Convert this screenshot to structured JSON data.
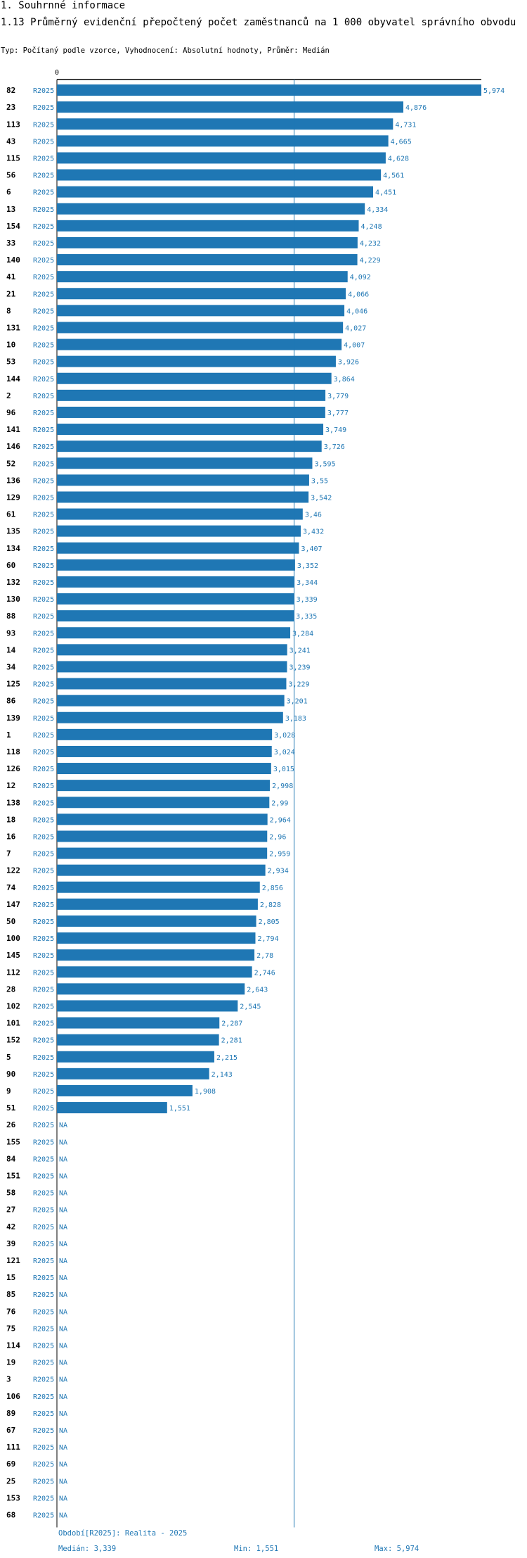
{
  "header": {
    "section": "1. Souhrnné informace",
    "title": "1.13 Průměrný evidenční přepočtený počet zaměstnanců na 1 000 obyvatel správního obvodu",
    "subtitle": "Typ: Počítaný podle vzorce, Vyhodnocení: Absolutní hodnoty, Průměr: Medián"
  },
  "colors": {
    "bar": "#1f77b4",
    "text": "#000000",
    "accent": "#1f77b4"
  },
  "chart_data": {
    "type": "bar",
    "orientation": "horizontal",
    "x_tick_labels": [
      "0"
    ],
    "xlim": [
      0,
      5.974
    ],
    "period_label": "R2025",
    "median": 3.339,
    "categories": [
      "82",
      "23",
      "113",
      "43",
      "115",
      "56",
      "6",
      "13",
      "154",
      "33",
      "140",
      "41",
      "21",
      "8",
      "131",
      "10",
      "53",
      "144",
      "2",
      "96",
      "141",
      "146",
      "52",
      "136",
      "129",
      "61",
      "135",
      "134",
      "60",
      "132",
      "130",
      "88",
      "93",
      "14",
      "34",
      "125",
      "86",
      "139",
      "1",
      "118",
      "126",
      "12",
      "138",
      "18",
      "16",
      "7",
      "122",
      "74",
      "147",
      "50",
      "100",
      "145",
      "112",
      "28",
      "102",
      "101",
      "152",
      "5",
      "90",
      "9",
      "51",
      "26",
      "155",
      "84",
      "151",
      "58",
      "27",
      "42",
      "39",
      "121",
      "15",
      "85",
      "76",
      "75",
      "114",
      "19",
      "3",
      "106",
      "89",
      "67",
      "111",
      "69",
      "25",
      "153",
      "68"
    ],
    "values": [
      5.974,
      4.876,
      4.731,
      4.665,
      4.628,
      4.561,
      4.451,
      4.334,
      4.248,
      4.232,
      4.229,
      4.092,
      4.066,
      4.046,
      4.027,
      4.007,
      3.926,
      3.864,
      3.779,
      3.777,
      3.749,
      3.726,
      3.595,
      3.55,
      3.542,
      3.46,
      3.432,
      3.407,
      3.352,
      3.344,
      3.339,
      3.335,
      3.284,
      3.241,
      3.239,
      3.229,
      3.201,
      3.183,
      3.028,
      3.024,
      3.015,
      2.998,
      2.99,
      2.964,
      2.96,
      2.959,
      2.934,
      2.856,
      2.828,
      2.805,
      2.794,
      2.78,
      2.746,
      2.643,
      2.545,
      2.287,
      2.281,
      2.215,
      2.143,
      1.908,
      1.551,
      null,
      null,
      null,
      null,
      null,
      null,
      null,
      null,
      null,
      null,
      null,
      null,
      null,
      null,
      null,
      null,
      null,
      null,
      null,
      null,
      null,
      null,
      null,
      null
    ],
    "value_labels": [
      "5,974",
      "4,876",
      "4,731",
      "4,665",
      "4,628",
      "4,561",
      "4,451",
      "4,334",
      "4,248",
      "4,232",
      "4,229",
      "4,092",
      "4,066",
      "4,046",
      "4,027",
      "4,007",
      "3,926",
      "3,864",
      "3,779",
      "3,777",
      "3,749",
      "3,726",
      "3,595",
      "3,55",
      "3,542",
      "3,46",
      "3,432",
      "3,407",
      "3,352",
      "3,344",
      "3,339",
      "3,335",
      "3,284",
      "3,241",
      "3,239",
      "3,229",
      "3,201",
      "3,183",
      "3,028",
      "3,024",
      "3,015",
      "2,998",
      "2,99",
      "2,964",
      "2,96",
      "2,959",
      "2,934",
      "2,856",
      "2,828",
      "2,805",
      "2,794",
      "2,78",
      "2,746",
      "2,643",
      "2,545",
      "2,287",
      "2,281",
      "2,215",
      "2,143",
      "1,908",
      "1,551",
      "NA",
      "NA",
      "NA",
      "NA",
      "NA",
      "NA",
      "NA",
      "NA",
      "NA",
      "NA",
      "NA",
      "NA",
      "NA",
      "NA",
      "NA",
      "NA",
      "NA",
      "NA",
      "NA",
      "NA",
      "NA",
      "NA",
      "NA",
      "NA"
    ]
  },
  "footer": {
    "period": "Období[R2025]: Realita - 2025",
    "median": "Medián: 3,339",
    "min": "Min: 1,551",
    "max": "Max: 5,974"
  }
}
